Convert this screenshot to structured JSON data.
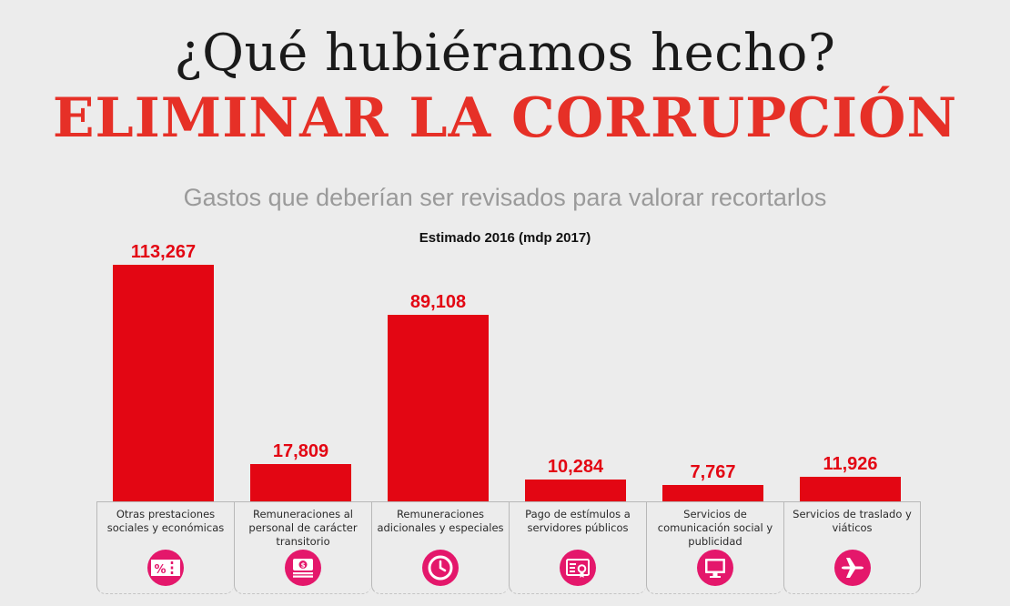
{
  "header": {
    "title_line1": "¿Qué hubiéramos hecho?",
    "title_line2": "ELIMINAR LA CORRUPCIÓN",
    "subtitle": "Gastos que deberían ser revisados para valorar recortarlos",
    "unit_label": "Estimado 2016 (mdp 2017)"
  },
  "colors": {
    "bar": "#e30613",
    "title_accent": "#e63027",
    "icon_bg": "#e4176b",
    "subtitle": "#9a9a9a",
    "background": "#ececec"
  },
  "chart_data": {
    "type": "bar",
    "title": "Gastos que deberían ser revisados para valorar recortarlos",
    "subtitle": "Estimado 2016 (mdp 2017)",
    "xlabel": "",
    "ylabel": "",
    "ylim": [
      0,
      113267
    ],
    "grid": false,
    "categories": [
      "Otras prestaciones sociales y económicas",
      "Remuneraciones al personal de carácter transitorio",
      "Remuneraciones adicionales y especiales",
      "Pago de estímulos a servidores públicos",
      "Servicios de comunicación social y publicidad",
      "Servicios de traslado y viáticos"
    ],
    "values": [
      113267,
      17809,
      89108,
      10284,
      7767,
      11926
    ],
    "value_labels": [
      "113,267",
      "17,809",
      "89,108",
      "10,284",
      "7,767",
      "11,926"
    ],
    "icons": [
      "percent-ticket-icon",
      "money-stack-icon",
      "clock-icon",
      "certificate-icon",
      "monitor-icon",
      "airplane-icon"
    ]
  }
}
